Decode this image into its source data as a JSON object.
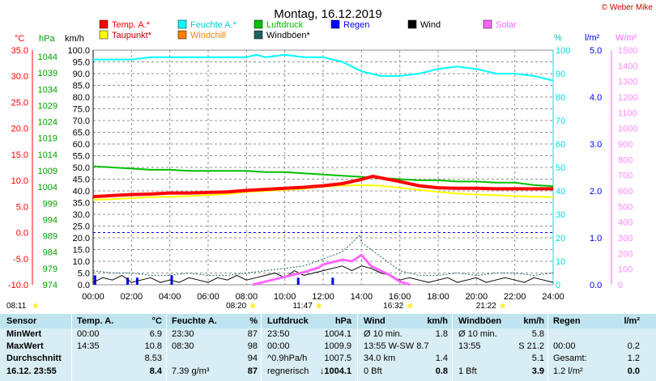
{
  "chart_data": {
    "type": "line",
    "title": "Montag, 16.12.2019",
    "copyright": "© Weber Mike",
    "x_ticks": [
      "00:00",
      "02:00",
      "04:00",
      "06:00",
      "08:00",
      "10:00",
      "12:00",
      "14:00",
      "16:00",
      "18:00",
      "20:00",
      "22:00",
      "24:00"
    ],
    "axes": {
      "temp": {
        "label": "°C",
        "color": "#ff0000",
        "min": -10,
        "max": 35,
        "ticks": [
          "35.0",
          "30.0",
          "25.0",
          "20.0",
          "15.0",
          "10.0",
          "5.0",
          "0.0",
          "-5.0",
          "-10.0"
        ]
      },
      "press": {
        "label": "hPa",
        "color": "#00a000",
        "ticks": [
          "1044",
          "1039",
          "1034",
          "1029",
          "1024",
          "1019",
          "1014",
          "1009",
          "1004",
          "999",
          "994",
          "989",
          "984",
          "979",
          "974"
        ]
      },
      "wind": {
        "label": "km/h",
        "color": "#000000",
        "min": 0,
        "max": 100,
        "ticks": [
          "100.0",
          "95.0",
          "90.0",
          "85.0",
          "80.0",
          "75.0",
          "70.0",
          "65.0",
          "60.0",
          "55.0",
          "50.0",
          "45.0",
          "40.0",
          "35.0",
          "30.0",
          "25.0",
          "20.0",
          "15.0",
          "10.0",
          "5.0",
          "0.0"
        ]
      },
      "hum": {
        "label": "%",
        "color": "#00ffff",
        "ticks": [
          "100",
          "90",
          "80",
          "70",
          "60",
          "50",
          "40",
          "30",
          "20",
          "10",
          "0"
        ]
      },
      "rain": {
        "label": "l/m²",
        "color": "#0000ff",
        "ticks": [
          "5.0",
          "4.0",
          "3.0",
          "2.0",
          "1.0",
          "0.0"
        ]
      },
      "solar": {
        "label": "W/m²",
        "color": "#ff66ff",
        "ticks": [
          "1500",
          "1400",
          "1300",
          "1200",
          "1100",
          "1000",
          "900",
          "800",
          "700",
          "600",
          "500",
          "400",
          "300",
          "200",
          "100",
          "0"
        ]
      }
    },
    "legend": [
      {
        "name": "Temp. A.*",
        "color": "#ff0000"
      },
      {
        "name": "Feuchte A.*",
        "color": "#00ffff"
      },
      {
        "name": "Luftdruck",
        "color": "#00c000"
      },
      {
        "name": "Regen",
        "color": "#0000ff"
      },
      {
        "name": "Wind",
        "color": "#000000"
      },
      {
        "name": "Solar",
        "color": "#ff66ff"
      },
      {
        "name": "Taupunkt*",
        "color": "#ffff00"
      },
      {
        "name": "Windchill",
        "color": "#ff8000"
      },
      {
        "name": "Windböen*",
        "color": "#206060"
      }
    ],
    "series": [
      {
        "name": "Feuchte A.*",
        "axis": "hum",
        "color": "#00ffff",
        "width": 2,
        "x": [
          0,
          1,
          2,
          3,
          4,
          5,
          6,
          7,
          8,
          8.5,
          9,
          10,
          11,
          12,
          13,
          13.5,
          14,
          15,
          16,
          17,
          18,
          19,
          20,
          21,
          22,
          23,
          24
        ],
        "y": [
          96,
          96,
          96,
          97,
          97,
          97,
          97,
          97,
          97,
          98,
          97,
          98,
          97,
          97,
          95,
          93,
          91,
          89,
          89,
          90,
          92,
          93,
          92,
          90,
          90,
          89,
          87
        ]
      },
      {
        "name": "Luftdruck",
        "axis": "wind",
        "color": "#00c000",
        "width": 2,
        "x": [
          0,
          1,
          2,
          3,
          4,
          5,
          6,
          7,
          8,
          9,
          10,
          11,
          12,
          13,
          14,
          15,
          16,
          17,
          18,
          19,
          20,
          21,
          22,
          23,
          24
        ],
        "y": [
          50.5,
          50,
          49.5,
          49,
          49,
          48.5,
          48.5,
          48.5,
          48.5,
          48,
          48,
          47.5,
          47,
          46.5,
          46,
          45.5,
          45,
          44.5,
          44.5,
          44,
          44,
          43.5,
          43.5,
          42.5,
          42
        ]
      },
      {
        "name": "Taupunkt*",
        "axis": "temp",
        "color": "#ffff00",
        "width": 2,
        "x": [
          0,
          1,
          2,
          3,
          4,
          5,
          6,
          7,
          8,
          9,
          10,
          11,
          12,
          13,
          14,
          15,
          16,
          17,
          18,
          19,
          20,
          21,
          22,
          23,
          24
        ],
        "y": [
          6.3,
          6.4,
          6.6,
          6.8,
          6.9,
          7.0,
          7.2,
          7.4,
          7.8,
          8.0,
          8.2,
          8.4,
          8.8,
          9.0,
          9.1,
          9.0,
          8.6,
          8.2,
          7.8,
          7.5,
          7.3,
          7.2,
          7.0,
          6.9,
          6.8
        ]
      },
      {
        "name": "Temp. A.*",
        "axis": "temp",
        "color": "#ff0000",
        "width": 4,
        "x": [
          0,
          1,
          2,
          3,
          4,
          5,
          6,
          7,
          8,
          9,
          10,
          11,
          12,
          13,
          14,
          14.58,
          15,
          16,
          17,
          18,
          19,
          20,
          21,
          22,
          23,
          24
        ],
        "y": [
          6.9,
          7.1,
          7.3,
          7.4,
          7.6,
          7.6,
          7.7,
          7.8,
          8.1,
          8.3,
          8.5,
          8.7,
          9.0,
          9.4,
          10.2,
          10.8,
          10.5,
          9.8,
          9.0,
          8.6,
          8.5,
          8.5,
          8.4,
          8.4,
          8.4,
          8.4
        ]
      },
      {
        "name": "Windböen*",
        "axis": "wind",
        "color": "#206060",
        "width": 1,
        "dash": "2,2",
        "x": [
          0,
          1,
          2,
          3,
          4,
          5,
          6,
          7,
          8,
          9,
          10,
          11,
          12,
          13,
          13.92,
          14,
          15,
          16,
          17,
          18,
          19,
          20,
          21,
          22,
          23,
          24
        ],
        "y": [
          6,
          5,
          5,
          4,
          4,
          5,
          4,
          4,
          5,
          6,
          7,
          8,
          11,
          14,
          21.2,
          18,
          12,
          6,
          4,
          4,
          5,
          4,
          5,
          5,
          4,
          5
        ]
      },
      {
        "name": "Wind",
        "axis": "wind",
        "color": "#000000",
        "width": 1,
        "x": [
          0,
          0.5,
          1,
          1.5,
          2,
          2.5,
          3,
          3.5,
          4,
          4.5,
          5,
          5.5,
          6,
          6.5,
          7,
          7.5,
          8,
          8.5,
          9,
          9.5,
          10,
          10.5,
          11,
          11.5,
          12,
          12.5,
          13,
          13.5,
          14,
          14.5,
          15,
          15.5,
          16,
          16.5,
          17,
          17.5,
          18,
          18.5,
          19,
          19.5,
          20,
          20.5,
          21,
          21.5,
          22,
          22.5,
          23,
          23.5,
          24
        ],
        "y": [
          1,
          3,
          2,
          4,
          1,
          2,
          3,
          1,
          2,
          1,
          3,
          2,
          1,
          3,
          2,
          4,
          2,
          3,
          4,
          5,
          3,
          6,
          4,
          5,
          6,
          7,
          8,
          6,
          8,
          7,
          5,
          4,
          2,
          3,
          2,
          1,
          2,
          3,
          1,
          2,
          3,
          1,
          2,
          3,
          2,
          1,
          3,
          2,
          1
        ]
      },
      {
        "name": "Solar",
        "axis": "solar",
        "color": "#ff66ff",
        "width": 3,
        "x": [
          8.33,
          9,
          10,
          11,
          11.78,
          12,
          13,
          13.5,
          14,
          14.5,
          15,
          15.5,
          16,
          16.53
        ],
        "y": [
          0,
          20,
          50,
          80,
          110,
          130,
          160,
          150,
          190,
          120,
          90,
          60,
          20,
          0
        ]
      }
    ],
    "rain_marks": [
      {
        "x": 0.1,
        "v": 0.2
      },
      {
        "x": 1.8,
        "v": 0.15
      },
      {
        "x": 2.3,
        "v": 0.15
      },
      {
        "x": 4.1,
        "v": 0.2
      },
      {
        "x": 10.7,
        "v": 0.15
      },
      {
        "x": 12.5,
        "v": 0.15
      }
    ],
    "sun_events": [
      {
        "label": "08:11",
        "x": -0.5,
        "row": 1
      },
      {
        "label": "08:20",
        "x": 8.33,
        "row": 2
      },
      {
        "label": "11:47",
        "x": 11.78,
        "row": 1
      },
      {
        "label": "16:32",
        "x": 16.53,
        "row": 2
      },
      {
        "label": "21:22",
        "x": 21.37,
        "row": 1
      }
    ],
    "table": {
      "rows": [
        [
          "Sensor",
          "Temp. A.",
          "°C",
          "Feuchte A.",
          "%",
          "Luftdruck",
          "hPa",
          "Wind",
          "km/h",
          "Windböen",
          "km/h",
          "Regen",
          "l/m²"
        ],
        [
          "MinWert",
          "00:00",
          "6.9",
          "23:30",
          "87",
          "23:50",
          "1004.1",
          "Ø 10 min.",
          "1.8",
          "Ø 10 min.",
          "5.8",
          "",
          ""
        ],
        [
          "MaxWert",
          "14:35",
          "10.8",
          "08:30",
          "98",
          "00:00",
          "1009.9",
          "13:55   W-SW 8.7",
          "",
          "13:55",
          "S 21.2",
          "00:00",
          "0.2"
        ],
        [
          "Durchschnitt",
          "",
          "8.53",
          "",
          "94",
          "^0.9hPa/h",
          "1007.5",
          "34.0 km",
          "1.4",
          "",
          "5.1",
          "Gesamt:",
          "1.2"
        ],
        [
          "16.12. 23:55",
          "",
          "8.4",
          "7.39 g/m³",
          "87",
          "regnerisch",
          "↓1004.1",
          "0 Bft",
          "0.8",
          "1 Bft",
          "3.9",
          "1.2 l/m²",
          "0.0"
        ]
      ]
    }
  }
}
